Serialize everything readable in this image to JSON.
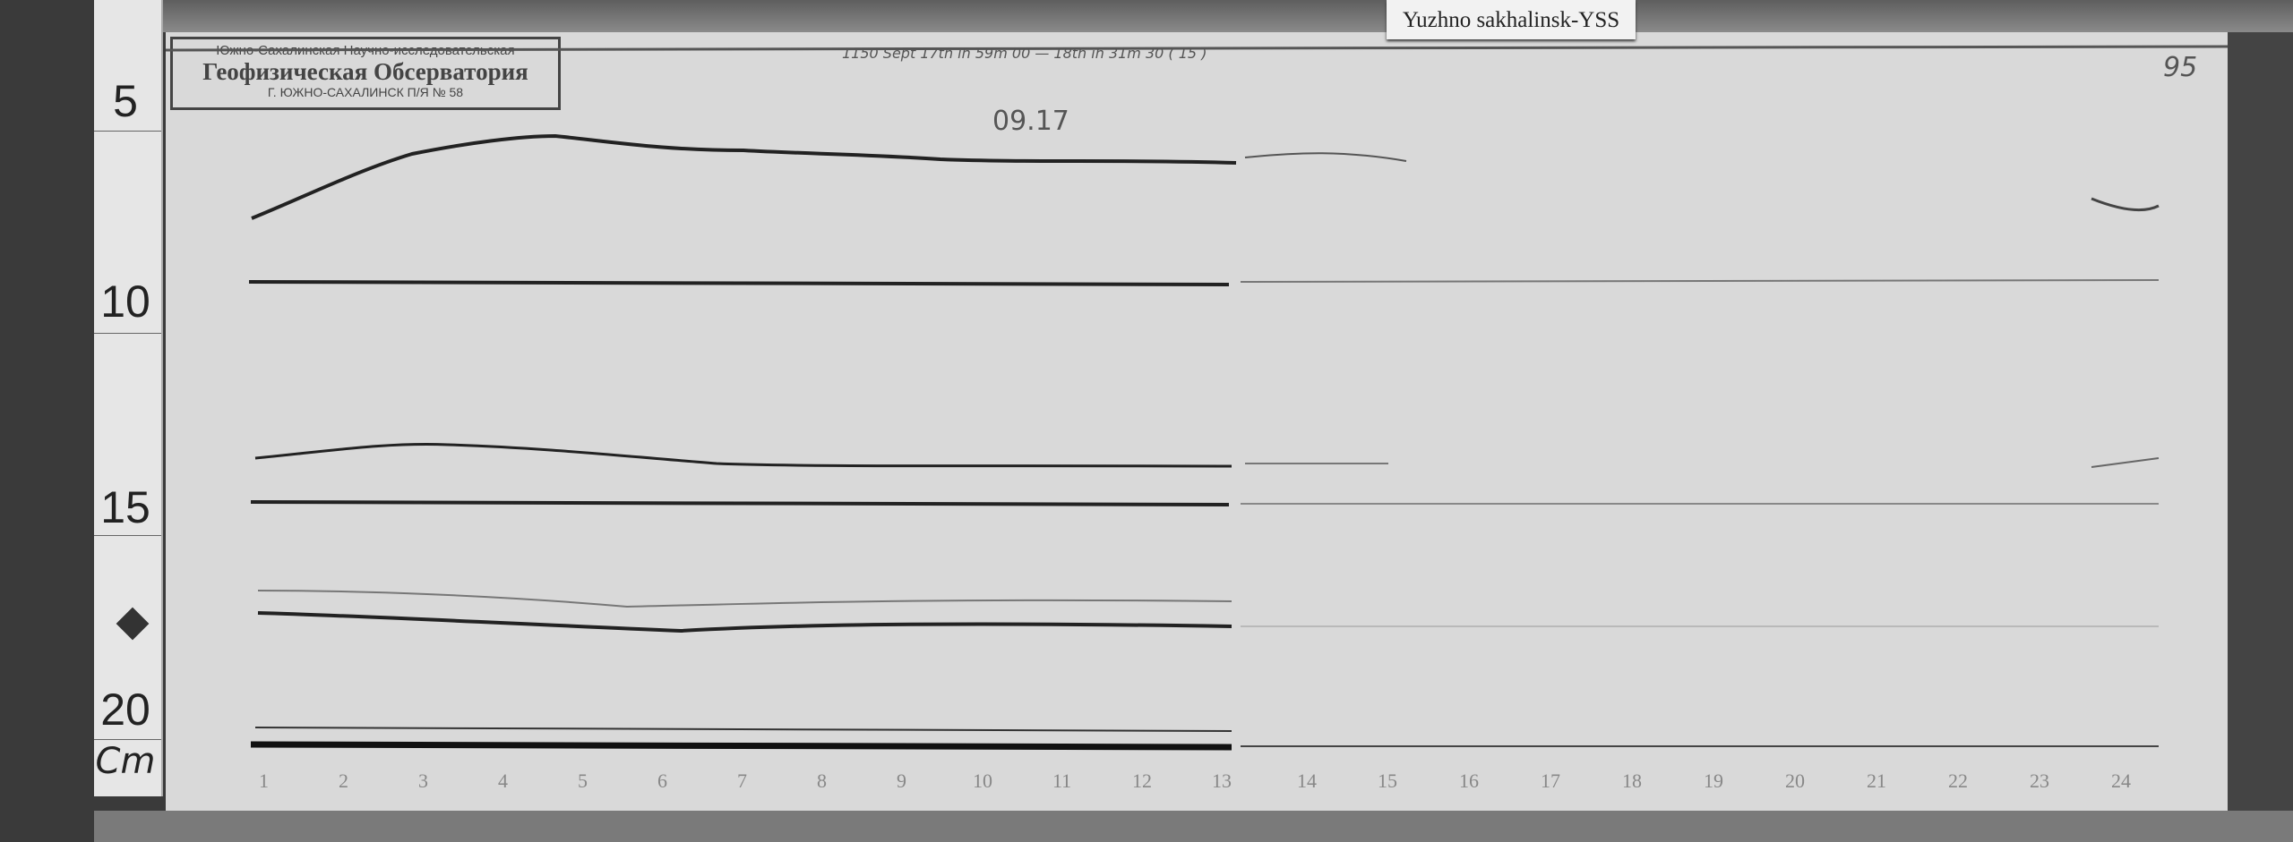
{
  "station_label": "Yuzhno sakhalinsk-YSS",
  "stamp": {
    "line1": "Южно-Сахалинская Научно-исследовательская",
    "line2": "Геофизическая Обсерватория",
    "line3": "Г. ЮЖНО-САХАЛИНСК  П/Я № 58"
  },
  "header_note": "1150     Sept 17th  ih 59m 00   —   18th  ih 31m 30  ( 15 )",
  "date_note": "09.17",
  "page_number": "95",
  "ruler": {
    "marks": [
      "5",
      "10",
      "15",
      "20"
    ],
    "unit": "Cm"
  },
  "hours": [
    "1",
    "2",
    "3",
    "4",
    "5",
    "6",
    "7",
    "8",
    "9",
    "10",
    "11",
    "12",
    "13",
    "14",
    "15",
    "16",
    "17",
    "18",
    "19",
    "20",
    "21",
    "22",
    "23",
    "24"
  ]
}
